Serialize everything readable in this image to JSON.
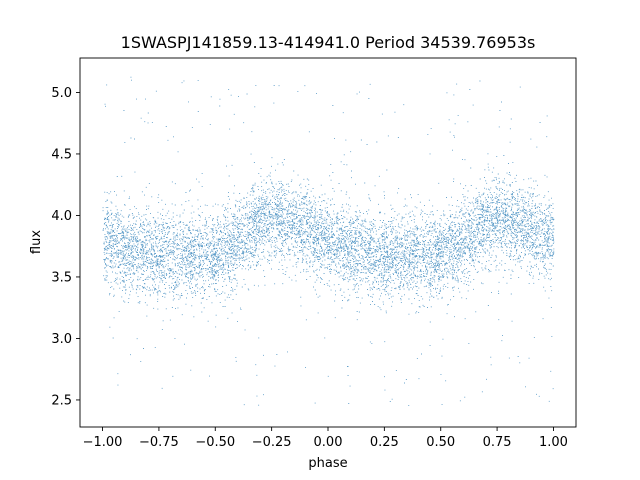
{
  "chart_data": {
    "type": "scatter",
    "title": "1SWASPJ141859.13-414941.0 Period 34539.76953s",
    "xlabel": "phase",
    "ylabel": "flux",
    "xlim": [
      -1.1,
      1.1
    ],
    "ylim": [
      2.28,
      5.28
    ],
    "xticks": [
      -1.0,
      -0.75,
      -0.5,
      -0.25,
      0.0,
      0.25,
      0.5,
      0.75,
      1.0
    ],
    "xtick_labels": [
      "−1.00",
      "−0.75",
      "−0.50",
      "−0.25",
      "0.00",
      "0.25",
      "0.50",
      "0.75",
      "1.00"
    ],
    "yticks": [
      2.5,
      3.0,
      3.5,
      4.0,
      4.5,
      5.0
    ],
    "ytick_labels": [
      "2.5",
      "3.0",
      "3.5",
      "4.0",
      "4.5",
      "5.0"
    ],
    "grid": false,
    "marker_color": "#1f77b4",
    "series": [
      {
        "x_range": [
          -1.0,
          1.0
        ],
        "profile_phase": [
          0.0,
          0.1,
          0.2,
          0.3,
          0.4,
          0.5,
          0.6,
          0.7,
          0.8,
          0.9,
          1.0
        ],
        "profile_flux": [
          3.8,
          3.72,
          3.68,
          3.68,
          3.68,
          3.68,
          3.78,
          3.95,
          3.98,
          3.88,
          3.8
        ],
        "scatter_sigma": 0.17,
        "approx_points": 60000,
        "outlier_range": [
          2.45,
          5.15
        ]
      }
    ]
  }
}
